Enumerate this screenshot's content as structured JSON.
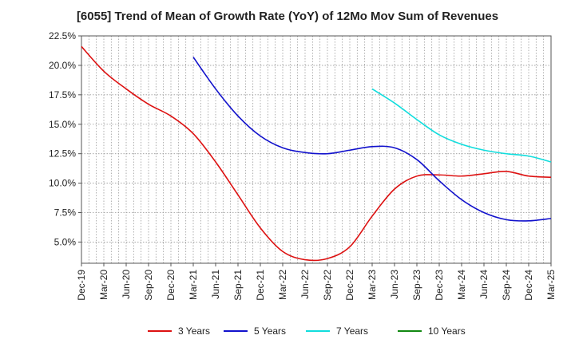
{
  "chart_data": {
    "type": "line",
    "title": "[6055]  Trend of Mean of Growth Rate (YoY) of 12Mo Mov Sum of Revenues",
    "xlabel": "",
    "ylabel": "",
    "ylim": [
      3.2,
      22.5
    ],
    "y_ticks": [
      {
        "value": 22.5,
        "label": "22.5%"
      },
      {
        "value": 20.0,
        "label": "20.0%"
      },
      {
        "value": 17.5,
        "label": "17.5%"
      },
      {
        "value": 15.0,
        "label": "15.0%"
      },
      {
        "value": 12.5,
        "label": "12.5%"
      },
      {
        "value": 10.0,
        "label": "10.0%"
      },
      {
        "value": 7.5,
        "label": "7.5%"
      },
      {
        "value": 5.0,
        "label": "5.0%"
      }
    ],
    "x_ticks": [
      "Dec-19",
      "Mar-20",
      "Jun-20",
      "Sep-20",
      "Dec-20",
      "Mar-21",
      "Jun-21",
      "Sep-21",
      "Dec-21",
      "Mar-22",
      "Jun-22",
      "Sep-22",
      "Dec-22",
      "Mar-23",
      "Jun-23",
      "Sep-23",
      "Dec-23",
      "Mar-24",
      "Jun-24",
      "Sep-24",
      "Dec-24",
      "Mar-25"
    ],
    "grid": true,
    "legend_position": "bottom",
    "series": [
      {
        "name": "3 Years",
        "color": "#dd1111",
        "points": [
          [
            0,
            21.6
          ],
          [
            1,
            19.5
          ],
          [
            2,
            18.0
          ],
          [
            3,
            16.7
          ],
          [
            4,
            15.7
          ],
          [
            5,
            14.2
          ],
          [
            6,
            11.8
          ],
          [
            7,
            9.0
          ],
          [
            8,
            6.2
          ],
          [
            9,
            4.2
          ],
          [
            10,
            3.5
          ],
          [
            11,
            3.6
          ],
          [
            12,
            4.6
          ],
          [
            13,
            7.2
          ],
          [
            14,
            9.5
          ],
          [
            15,
            10.6
          ],
          [
            16,
            10.7
          ],
          [
            17,
            10.6
          ],
          [
            18,
            10.8
          ],
          [
            19,
            11.0
          ],
          [
            20,
            10.6
          ],
          [
            21,
            10.5
          ]
        ]
      },
      {
        "name": "5 Years",
        "color": "#1111cc",
        "points": [
          [
            5,
            20.7
          ],
          [
            6,
            18.0
          ],
          [
            7,
            15.7
          ],
          [
            8,
            14.0
          ],
          [
            9,
            13.0
          ],
          [
            10,
            12.6
          ],
          [
            11,
            12.5
          ],
          [
            12,
            12.8
          ],
          [
            13,
            13.1
          ],
          [
            14,
            13.0
          ],
          [
            15,
            12.0
          ],
          [
            16,
            10.2
          ],
          [
            17,
            8.6
          ],
          [
            18,
            7.5
          ],
          [
            19,
            6.9
          ],
          [
            20,
            6.8
          ],
          [
            21,
            7.0
          ]
        ]
      },
      {
        "name": "7 Years",
        "color": "#11dddd",
        "points": [
          [
            13,
            18.0
          ],
          [
            14,
            16.8
          ],
          [
            15,
            15.4
          ],
          [
            16,
            14.1
          ],
          [
            17,
            13.3
          ],
          [
            18,
            12.8
          ],
          [
            19,
            12.5
          ],
          [
            20,
            12.3
          ],
          [
            21,
            11.8
          ]
        ]
      },
      {
        "name": "10 Years",
        "color": "#118811",
        "points": []
      }
    ]
  }
}
